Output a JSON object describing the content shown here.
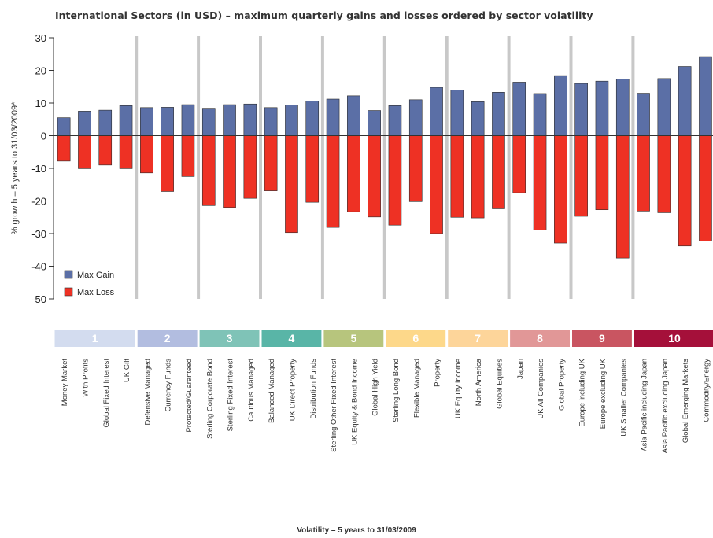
{
  "chart_data": {
    "type": "bar",
    "title": "International Sectors (in USD) – maximum quarterly gains and losses ordered by sector volatility",
    "ylabel": "% growth – 5 years to 31/03/2009*",
    "xlabel": "Volatility – 5 years to 31/03/2009",
    "ylim": [
      -50,
      30
    ],
    "yticks": [
      30,
      20,
      10,
      0,
      -10,
      -20,
      -30,
      -40,
      -50
    ],
    "grid": false,
    "legend_position": "bottom-left",
    "categories": [
      "Money Market",
      "With Profits",
      "Global Fixed Interest",
      "UK Gilt",
      "Defensive Managed",
      "Currency Funds",
      "Protected/Guaranteed",
      "Sterling Corporate Bond",
      "Sterling Fixed Interest",
      "Cautious Managed",
      "Balanced Managed",
      "UK Direct Property",
      "Distribution Funds",
      "Sterling Other Fixed Interest",
      "UK Equity & Bond Income",
      "Global High Yield",
      "Sterling Long Bond",
      "Flexible Managed",
      "Property",
      "UK Equity Income",
      "North America",
      "Global Equities",
      "Japan",
      "UK All Companies",
      "Global Property",
      "Europe including UK",
      "Europe excluding UK",
      "UK Smaller Companies",
      "Asia Pacific including Japan",
      "Asia Pacific excluding Japan",
      "Global Emerging Markets",
      "Commodity/Energy"
    ],
    "series": [
      {
        "name": "Max Gain",
        "color": "#5b6fa6",
        "values": [
          5.5,
          7.5,
          7.8,
          9.2,
          8.6,
          8.7,
          9.5,
          8.4,
          9.5,
          9.7,
          8.6,
          9.4,
          10.6,
          11.2,
          12.2,
          7.7,
          9.2,
          11.0,
          14.8,
          14.0,
          10.4,
          13.3,
          16.4,
          12.9,
          18.4,
          16.0,
          16.7,
          17.3,
          13.0,
          17.5,
          21.2,
          24.2
        ]
      },
      {
        "name": "Max Loss",
        "color": "#ee3124",
        "values": [
          -7.8,
          -10.1,
          -9.0,
          -10.1,
          -11.4,
          -17.1,
          -12.5,
          -21.4,
          -22.0,
          -19.2,
          -16.9,
          -29.7,
          -20.4,
          -28.1,
          -23.3,
          -24.9,
          -27.4,
          -20.2,
          -30.0,
          -25.0,
          -25.2,
          -22.4,
          -17.5,
          -28.9,
          -32.9,
          -24.7,
          -22.7,
          -37.5,
          -23.1,
          -23.6,
          -33.8,
          -32.3
        ]
      }
    ],
    "volatility_bands": [
      {
        "label": "1",
        "start": 0,
        "count": 4,
        "color": "#d3dcef",
        "text_color": "#ffffff"
      },
      {
        "label": "2",
        "start": 4,
        "count": 3,
        "color": "#b2bde0",
        "text_color": "#ffffff"
      },
      {
        "label": "3",
        "start": 7,
        "count": 3,
        "color": "#7fc3b7",
        "text_color": "#ffffff"
      },
      {
        "label": "4",
        "start": 10,
        "count": 3,
        "color": "#59b5a7",
        "text_color": "#ffffff"
      },
      {
        "label": "5",
        "start": 13,
        "count": 3,
        "color": "#b7c57d",
        "text_color": "#ffffff"
      },
      {
        "label": "6",
        "start": 16,
        "count": 3,
        "color": "#fdd88a",
        "text_color": "#ffffff"
      },
      {
        "label": "7",
        "start": 19,
        "count": 3,
        "color": "#fdd59a",
        "text_color": "#ffffff"
      },
      {
        "label": "8",
        "start": 22,
        "count": 3,
        "color": "#e19797",
        "text_color": "#ffffff"
      },
      {
        "label": "9",
        "start": 25,
        "count": 3,
        "color": "#c95561",
        "text_color": "#ffffff"
      },
      {
        "label": "10",
        "start": 28,
        "count": 4,
        "color": "#a5103a",
        "text_color": "#ffffff"
      }
    ],
    "separator_color": "#c8c8c8"
  }
}
